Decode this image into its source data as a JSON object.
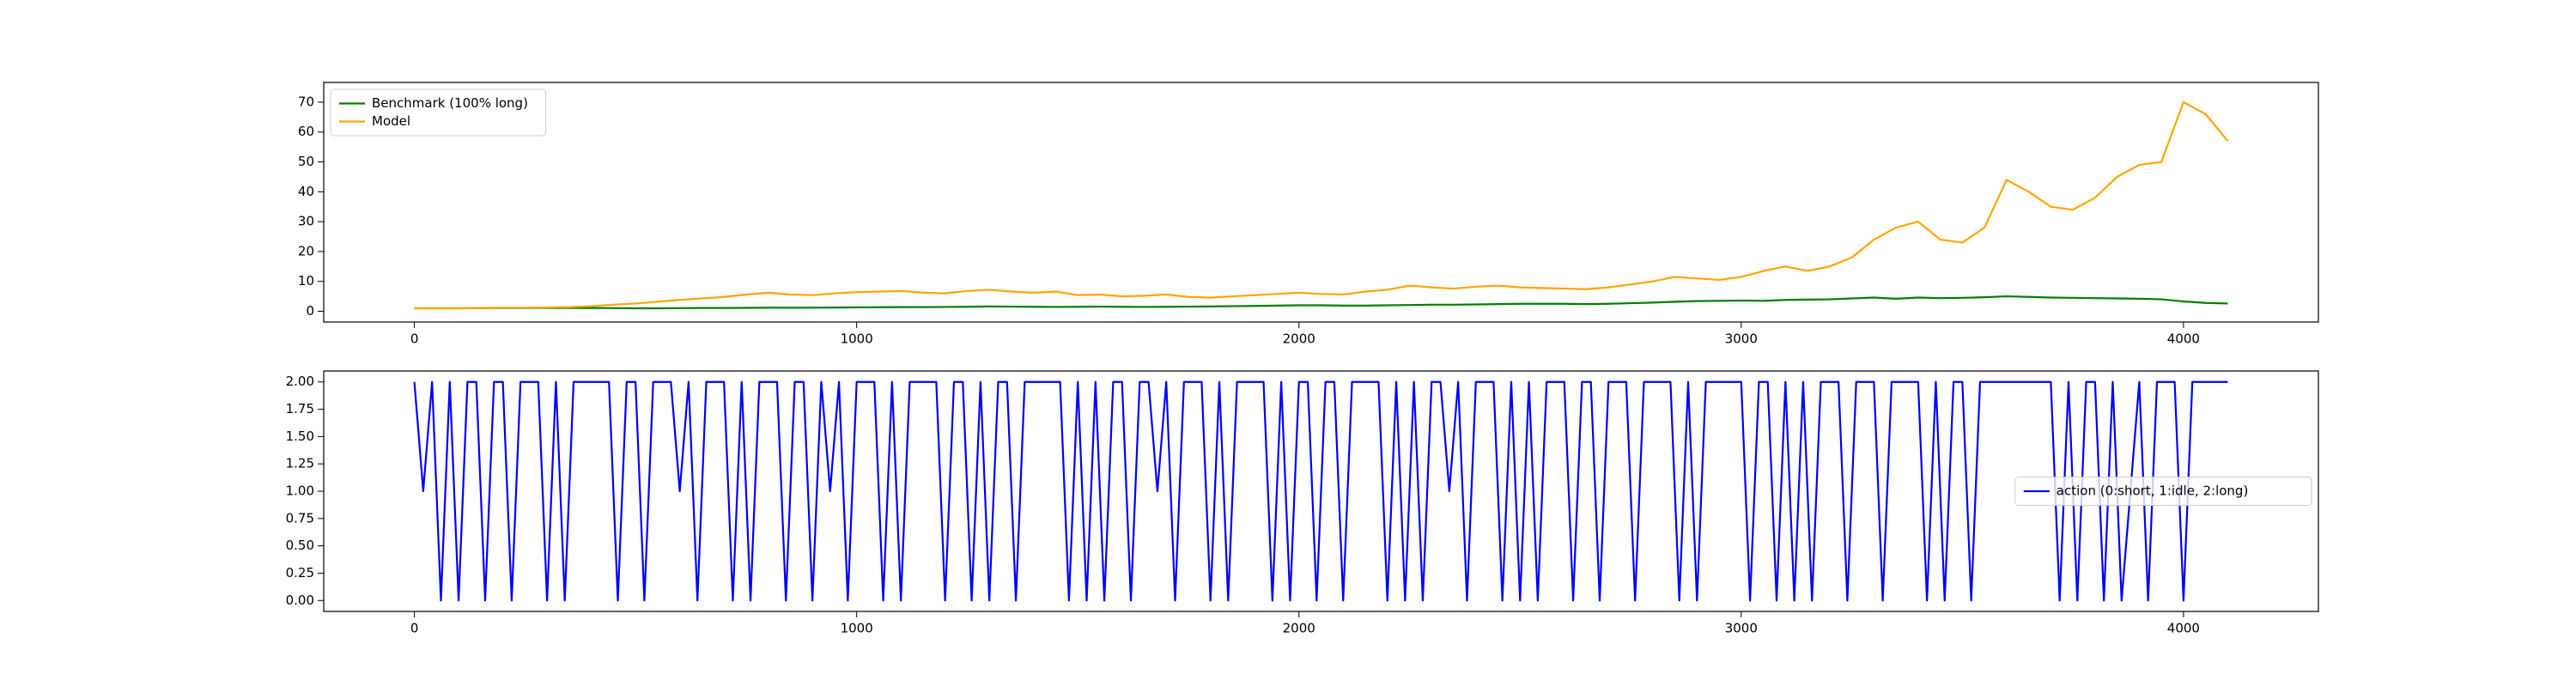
{
  "chart_data": [
    {
      "type": "line",
      "x": [
        0,
        50,
        100,
        150,
        200,
        250,
        300,
        350,
        400,
        450,
        500,
        550,
        600,
        650,
        700,
        750,
        800,
        850,
        900,
        950,
        1000,
        1050,
        1100,
        1150,
        1200,
        1250,
        1300,
        1350,
        1400,
        1450,
        1500,
        1550,
        1600,
        1650,
        1700,
        1750,
        1800,
        1850,
        1900,
        1950,
        2000,
        2050,
        2100,
        2150,
        2200,
        2250,
        2300,
        2350,
        2400,
        2450,
        2500,
        2550,
        2600,
        2650,
        2700,
        2750,
        2800,
        2850,
        2900,
        2950,
        3000,
        3050,
        3100,
        3150,
        3200,
        3250,
        3300,
        3350,
        3400,
        3450,
        3500,
        3550,
        3600,
        3650,
        3700,
        3750,
        3800,
        3850,
        3900,
        3950,
        4000,
        4050,
        4100
      ],
      "series": [
        {
          "name": "Benchmark (100% long)",
          "color": "#008000",
          "values": [
            1,
            1,
            1,
            1.05,
            1.1,
            1.1,
            1.15,
            1.1,
            1.1,
            1.05,
            1,
            1,
            1.05,
            1.1,
            1.1,
            1.15,
            1.2,
            1.2,
            1.2,
            1.25,
            1.3,
            1.35,
            1.4,
            1.4,
            1.45,
            1.5,
            1.6,
            1.55,
            1.5,
            1.45,
            1.5,
            1.55,
            1.5,
            1.45,
            1.5,
            1.55,
            1.6,
            1.7,
            1.8,
            1.9,
            2,
            2,
            1.9,
            1.9,
            2,
            2.1,
            2.2,
            2.2,
            2.3,
            2.4,
            2.5,
            2.5,
            2.5,
            2.4,
            2.5,
            2.7,
            2.9,
            3.2,
            3.4,
            3.5,
            3.6,
            3.5,
            3.8,
            3.9,
            4,
            4.3,
            4.6,
            4.2,
            4.6,
            4.4,
            4.5,
            4.7,
            5,
            4.8,
            4.6,
            4.5,
            4.4,
            4.3,
            4.2,
            4,
            3.3,
            2.8,
            2.6
          ]
        },
        {
          "name": "Model",
          "color": "#ffa500",
          "values": [
            1,
            1,
            1,
            1.1,
            1.2,
            1.2,
            1.3,
            1.4,
            1.7,
            2.2,
            2.6,
            3.2,
            3.8,
            4.3,
            4.8,
            5.6,
            6.2,
            5.6,
            5.4,
            6,
            6.4,
            6.6,
            6.8,
            6.2,
            6,
            6.8,
            7.2,
            6.6,
            6.2,
            6.6,
            5.4,
            5.6,
            5,
            5.2,
            5.6,
            4.8,
            4.6,
            5,
            5.4,
            5.8,
            6.2,
            5.8,
            5.6,
            6.6,
            7.2,
            8.6,
            8,
            7.6,
            8.2,
            8.6,
            8,
            7.8,
            7.6,
            7.4,
            8,
            9,
            10,
            11.5,
            11,
            10.5,
            11.5,
            13.5,
            15,
            13.5,
            15,
            18,
            24,
            28,
            30,
            24,
            23,
            28,
            44,
            40,
            35,
            34,
            38,
            45,
            49,
            50,
            70,
            66,
            57
          ]
        }
      ],
      "xlim": [
        -205,
        4305
      ],
      "xticks": [
        0,
        1000,
        2000,
        3000,
        4000
      ],
      "ylim": [
        -3.6,
        76.6
      ],
      "yticks": [
        0,
        10,
        20,
        30,
        40,
        50,
        60,
        70
      ],
      "legend": "upper left"
    },
    {
      "type": "line",
      "x": [
        0,
        20,
        40,
        60,
        80,
        100,
        120,
        140,
        160,
        180,
        200,
        220,
        240,
        260,
        280,
        300,
        320,
        340,
        360,
        380,
        400,
        420,
        440,
        460,
        480,
        500,
        520,
        540,
        560,
        580,
        600,
        620,
        640,
        660,
        680,
        700,
        720,
        740,
        760,
        780,
        800,
        820,
        840,
        860,
        880,
        900,
        920,
        940,
        960,
        980,
        1000,
        1020,
        1040,
        1060,
        1080,
        1100,
        1120,
        1140,
        1160,
        1180,
        1200,
        1220,
        1240,
        1260,
        1280,
        1300,
        1320,
        1340,
        1360,
        1380,
        1400,
        1420,
        1440,
        1460,
        1480,
        1500,
        1520,
        1540,
        1560,
        1580,
        1600,
        1620,
        1640,
        1660,
        1680,
        1700,
        1720,
        1740,
        1760,
        1780,
        1800,
        1820,
        1840,
        1860,
        1880,
        1900,
        1920,
        1940,
        1960,
        1980,
        2000,
        2020,
        2040,
        2060,
        2080,
        2100,
        2120,
        2140,
        2160,
        2180,
        2200,
        2220,
        2240,
        2260,
        2280,
        2300,
        2320,
        2340,
        2360,
        2380,
        2400,
        2420,
        2440,
        2460,
        2480,
        2500,
        2520,
        2540,
        2560,
        2580,
        2600,
        2620,
        2640,
        2660,
        2680,
        2700,
        2720,
        2740,
        2760,
        2780,
        2800,
        2820,
        2840,
        2860,
        2880,
        2900,
        2920,
        2940,
        2960,
        2980,
        3000,
        3020,
        3040,
        3060,
        3080,
        3100,
        3120,
        3140,
        3160,
        3180,
        3200,
        3220,
        3240,
        3260,
        3280,
        3300,
        3320,
        3340,
        3360,
        3380,
        3400,
        3420,
        3440,
        3460,
        3480,
        3500,
        3520,
        3540,
        3560,
        3580,
        3600,
        3620,
        3640,
        3660,
        3680,
        3700,
        3720,
        3740,
        3760,
        3780,
        3800,
        3820,
        3840,
        3860,
        3880,
        3900,
        3920,
        3940,
        3960,
        3980,
        4000,
        4020,
        4040,
        4060,
        4080,
        4100
      ],
      "series": [
        {
          "name": "action (0:short, 1:idle, 2:long)",
          "color": "#0000ff",
          "values": [
            2,
            1,
            2,
            0,
            2,
            0,
            2,
            2,
            0,
            2,
            2,
            0,
            2,
            2,
            2,
            0,
            2,
            0,
            2,
            2,
            2,
            2,
            2,
            0,
            2,
            2,
            0,
            2,
            2,
            2,
            1,
            2,
            0,
            2,
            2,
            2,
            0,
            2,
            0,
            2,
            2,
            2,
            0,
            2,
            2,
            0,
            2,
            1,
            2,
            0,
            2,
            2,
            2,
            0,
            2,
            0,
            2,
            2,
            2,
            2,
            0,
            2,
            2,
            0,
            2,
            0,
            2,
            2,
            0,
            2,
            2,
            2,
            2,
            2,
            0,
            2,
            0,
            2,
            0,
            2,
            2,
            0,
            2,
            2,
            1,
            2,
            0,
            2,
            2,
            2,
            0,
            2,
            0,
            2,
            2,
            2,
            2,
            0,
            2,
            0,
            2,
            2,
            0,
            2,
            2,
            0,
            2,
            2,
            2,
            2,
            0,
            2,
            0,
            2,
            0,
            2,
            2,
            1,
            2,
            0,
            2,
            2,
            2,
            0,
            2,
            0,
            2,
            0,
            2,
            2,
            2,
            0,
            2,
            2,
            0,
            2,
            2,
            2,
            0,
            2,
            2,
            2,
            2,
            0,
            2,
            0,
            2,
            2,
            2,
            2,
            2,
            0,
            2,
            2,
            0,
            2,
            0,
            2,
            0,
            2,
            2,
            2,
            0,
            2,
            2,
            2,
            0,
            2,
            2,
            2,
            2,
            0,
            2,
            0,
            2,
            2,
            0,
            2,
            2,
            2,
            2,
            2,
            2,
            2,
            2,
            2,
            0,
            2,
            0,
            2,
            2,
            0,
            2,
            0,
            1,
            2,
            0,
            2,
            2,
            2,
            0,
            2,
            2,
            2,
            2,
            2
          ]
        }
      ],
      "xlim": [
        -205,
        4305
      ],
      "xticks": [
        0,
        1000,
        2000,
        3000,
        4000
      ],
      "ylim": [
        -0.1,
        2.1
      ],
      "yticks": [
        {
          "value": 0,
          "label": "0.00"
        },
        {
          "value": 0.25,
          "label": "0.25"
        },
        {
          "value": 0.5,
          "label": "0.50"
        },
        {
          "value": 0.75,
          "label": "0.75"
        },
        {
          "value": 1,
          "label": "1.00"
        },
        {
          "value": 1.25,
          "label": "1.25"
        },
        {
          "value": 1.5,
          "label": "1.50"
        },
        {
          "value": 1.75,
          "label": "1.75"
        },
        {
          "value": 2,
          "label": "2.00"
        }
      ],
      "legend": "center right"
    }
  ]
}
